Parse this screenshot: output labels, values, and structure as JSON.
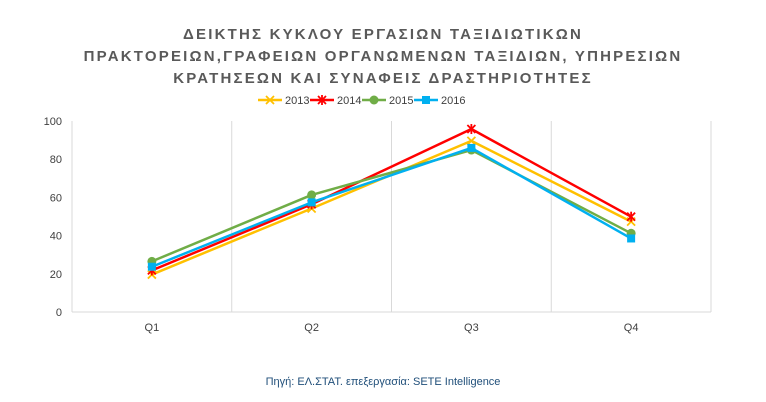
{
  "title_lines": [
    "ΔΕΙΚΤΗΣ ΚΥΚΛΟΥ ΕΡΓΑΣΙΩΝ ΤΑΞΙΔΙΩΤΙΚΩΝ",
    "ΠΡΑΚΤΟΡΕΙΩΝ,ΓΡΑΦΕΙΩΝ ΟΡΓΑΝΩΜΕΝΩΝ ΤΑΞΙΔΙΩΝ, ΥΠΗΡΕΣΙΩΝ",
    "ΚΡΑΤΗΣΕΩΝ ΚΑΙ ΣΥΝΑΦΕΙΣ ΔΡΑΣΤΗΡΙΟΤΗΤΕΣ"
  ],
  "source": "Πηγή: ΕΛ.ΣΤΑΤ.  επεξεργασία: SETE Intelligence",
  "chart_data": {
    "type": "line",
    "title": "ΔΕΙΚΤΗΣ ΚΥΚΛΟΥ ΕΡΓΑΣΙΩΝ ΤΑΞΙΔΙΩΤΙΚΩΝ ΠΡΑΚΤΟΡΕΙΩΝ,ΓΡΑΦΕΙΩΝ ΟΡΓΑΝΩΜΕΝΩΝ ΤΑΞΙΔΙΩΝ, ΥΠΗΡΕΣΙΩΝ ΚΡΑΤΗΣΕΩΝ ΚΑΙ ΣΥΝΑΦΕΙΣ ΔΡΑΣΤΗΡΙΟΤΗΤΕΣ",
    "xlabel": "",
    "ylabel": "",
    "categories": [
      "Q1",
      "Q2",
      "Q3",
      "Q4"
    ],
    "ylim": [
      0,
      100
    ],
    "yticks": [
      0,
      20,
      40,
      60,
      80,
      100
    ],
    "grid": "vertical gridlines between categories",
    "legend_position": "top",
    "series": [
      {
        "name": "2013",
        "color": "#FFC000",
        "marker": "x",
        "values": [
          19.6,
          54.2,
          89.6,
          47.3
        ]
      },
      {
        "name": "2014",
        "color": "#FF0000",
        "marker": "star",
        "values": [
          21.8,
          56.4,
          95.8,
          49.9
        ]
      },
      {
        "name": "2015",
        "color": "#70AD47",
        "marker": "circle",
        "values": [
          26.5,
          61.3,
          84.8,
          41.2
        ]
      },
      {
        "name": "2016",
        "color": "#00B0F0",
        "marker": "square",
        "values": [
          23.7,
          57.4,
          85.9,
          38.5
        ]
      }
    ]
  }
}
